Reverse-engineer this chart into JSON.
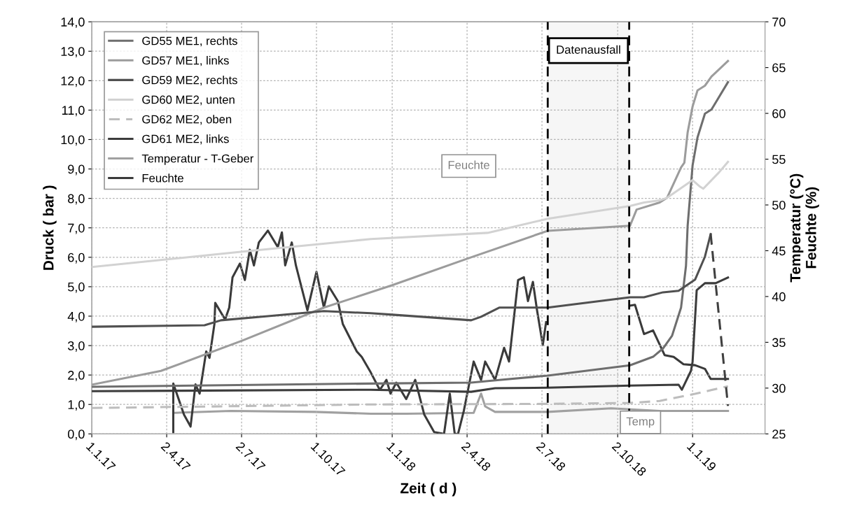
{
  "chart_data": {
    "type": "line",
    "xlabel": "Zeit ( d )",
    "ylabel": "Druck ( bar )",
    "y2label": "Temperatur (°C)\nFeuchte (%)",
    "xlim": [
      "2017-01-01",
      "2019-03-30"
    ],
    "xticks": [
      {
        "value": "2017-01-01",
        "label": "1.1.17"
      },
      {
        "value": "2017-04-02",
        "label": "2.4.17"
      },
      {
        "value": "2017-07-02",
        "label": "2.7.17"
      },
      {
        "value": "2017-10-01",
        "label": "1.10.17"
      },
      {
        "value": "2018-01-01",
        "label": "1.1.18"
      },
      {
        "value": "2018-04-02",
        "label": "2.4.18"
      },
      {
        "value": "2018-07-02",
        "label": "2.7.18"
      },
      {
        "value": "2018-10-02",
        "label": "2.10.18"
      },
      {
        "value": "2019-01-01",
        "label": "1.1.19"
      }
    ],
    "ylim": [
      0,
      14
    ],
    "yticks": [
      {
        "value": 0,
        "label": "0,0"
      },
      {
        "value": 1,
        "label": "1,0"
      },
      {
        "value": 2,
        "label": "2,0"
      },
      {
        "value": 3,
        "label": "3,0"
      },
      {
        "value": 4,
        "label": "4,0"
      },
      {
        "value": 5,
        "label": "5,0"
      },
      {
        "value": 6,
        "label": "6,0"
      },
      {
        "value": 7,
        "label": "7,0"
      },
      {
        "value": 8,
        "label": "8,0"
      },
      {
        "value": 9,
        "label": "9,0"
      },
      {
        "value": 10,
        "label": "10,0"
      },
      {
        "value": 11,
        "label": "11,0"
      },
      {
        "value": 12,
        "label": "12,0"
      },
      {
        "value": 13,
        "label": "13,0"
      },
      {
        "value": 14,
        "label": "14,0"
      }
    ],
    "y2lim": [
      25,
      70
    ],
    "y2ticks": [
      25,
      30,
      35,
      40,
      45,
      50,
      55,
      60,
      65,
      70
    ],
    "grid": true,
    "legend": "top left",
    "bands": [
      {
        "axis": "x",
        "from": "2018-07-09",
        "to": "2018-10-16",
        "label": "Datenausfall",
        "color": "#f6f6f6"
      }
    ],
    "ref_lines": [
      {
        "axis": "x",
        "value": "2018-07-09",
        "color": "#000000",
        "line_style": "dashed"
      },
      {
        "axis": "x",
        "value": "2018-10-16",
        "color": "#000000",
        "line_style": "dashed"
      }
    ],
    "annotations": [
      "Feuchte",
      "Temp"
    ],
    "series": [
      {
        "name": "GD55 ME1, rechts",
        "color": "#6e6e6e",
        "line_style": "solid",
        "x": [
          "2017-01-01",
          "2017-12-06",
          "2018-04-07",
          "2018-05-11",
          "2018-07-09",
          "2018-10-17",
          "2018-11-14",
          "2018-11-26",
          "2018-12-07",
          "2018-12-18",
          "2018-12-24",
          "2018-12-26",
          "2019-01-01",
          "2019-01-07",
          "2019-01-16",
          "2019-01-24",
          "2019-02-13"
        ],
        "values": [
          1.6,
          1.71,
          1.74,
          1.83,
          1.98,
          2.33,
          2.62,
          2.9,
          3.33,
          4.29,
          5.71,
          7.07,
          9.12,
          10.07,
          10.88,
          11.02,
          11.95
        ]
      },
      {
        "name": "GD57 ME1, links",
        "color": "#9c9c9c",
        "line_style": "solid",
        "x": [
          "2017-01-01",
          "2017-03-26",
          "2017-07-03",
          "2017-10-10",
          "2018-01-01",
          "2018-04-02",
          "2018-07-09",
          "2018-10-17",
          "2018-10-25",
          "2018-11-22",
          "2018-12-01",
          "2018-12-18",
          "2018-12-22",
          "2018-12-26",
          "2019-01-01",
          "2019-01-07",
          "2019-01-16",
          "2019-01-24",
          "2019-02-13"
        ],
        "values": [
          1.67,
          2.14,
          3.17,
          4.29,
          5.05,
          5.95,
          6.9,
          7.07,
          7.62,
          7.86,
          8.02,
          9.05,
          9.21,
          10.24,
          11.12,
          11.67,
          11.83,
          12.14,
          12.67
        ]
      },
      {
        "name": "GD59 ME2, rechts",
        "color": "#505050",
        "line_style": "solid",
        "x": [
          "2017-01-01",
          "2017-05-18",
          "2017-06-07",
          "2017-08-03",
          "2017-10-10",
          "2017-12-06",
          "2018-01-01",
          "2018-04-07",
          "2018-04-19",
          "2018-05-11",
          "2018-07-09",
          "2018-10-17",
          "2018-11-03",
          "2018-11-26",
          "2018-12-15",
          "2019-01-04",
          "2019-01-16",
          "2019-01-23"
        ],
        "values": [
          3.64,
          3.69,
          3.86,
          4.0,
          4.17,
          4.1,
          4.05,
          3.86,
          3.98,
          4.29,
          4.29,
          4.64,
          4.64,
          4.81,
          4.86,
          5.24,
          6.02,
          6.79
        ]
      },
      {
        "name": "GD60 ME2, unten",
        "color": "#d2d2d2",
        "line_style": "solid",
        "x": [
          "2017-01-01",
          "2017-07-03",
          "2017-12-06",
          "2018-04-27",
          "2018-07-09",
          "2018-10-17",
          "2018-11-03",
          "2018-11-22",
          "2018-12-01",
          "2019-01-01",
          "2019-01-10",
          "2019-01-14",
          "2019-02-02",
          "2019-02-13"
        ],
        "values": [
          5.67,
          6.19,
          6.62,
          6.83,
          7.31,
          7.74,
          7.86,
          7.93,
          8.02,
          8.62,
          8.4,
          8.33,
          8.88,
          9.24
        ]
      },
      {
        "name": "GD62 ME2, oben",
        "color": "#bdbdbd",
        "line_style": "dashed",
        "x": [
          "2017-01-01",
          "2017-12-06",
          "2018-07-07",
          "2018-10-17",
          "2018-11-22",
          "2019-01-04",
          "2019-02-13"
        ],
        "values": [
          0.88,
          1.0,
          1.02,
          1.05,
          1.12,
          1.36,
          1.62
        ]
      },
      {
        "name": "GD61 ME2, links",
        "color": "#3c3c3c",
        "line_style": "solid",
        "x": [
          "2017-01-01",
          "2017-12-06",
          "2018-04-07",
          "2018-05-06",
          "2018-07-09",
          "2018-10-17",
          "2018-12-15",
          "2018-12-19",
          "2018-12-30",
          "2019-01-01",
          "2019-01-06",
          "2019-01-16",
          "2019-01-29",
          "2019-02-13"
        ],
        "values": [
          1.45,
          1.5,
          1.43,
          1.55,
          1.57,
          1.64,
          1.67,
          1.5,
          2.14,
          2.45,
          4.88,
          5.12,
          5.12,
          5.31
        ]
      },
      {
        "name": "Temperatur - T-Geber",
        "color": "#a0a0a0",
        "line_style": "solid",
        "axis": "y2",
        "x": [
          "2017-04-12",
          "2017-06-19",
          "2017-09-29",
          "2017-12-06",
          "2018-01-18",
          "2018-04-10",
          "2018-04-19",
          "2018-04-24",
          "2018-05-06",
          "2018-07-09",
          "2018-09-24",
          "2018-11-22",
          "2019-02-13"
        ],
        "values": [
          27.3,
          27.5,
          27.4,
          27.2,
          27.2,
          27.3,
          29.4,
          28.0,
          27.4,
          27.4,
          27.8,
          27.5,
          27.5
        ]
      },
      {
        "name": "Feuchte",
        "color": "#3a3a3a",
        "line_style": "solid",
        "axis": "y2",
        "x": [
          "2017-04-10",
          "2017-04-10",
          "2017-04-23",
          "2017-05-01",
          "2017-05-07",
          "2017-05-12",
          "2017-05-20",
          "2017-05-24",
          "2017-05-30",
          "2017-05-31",
          "2017-06-12",
          "2017-06-17",
          "2017-06-21",
          "2017-06-30",
          "2017-07-06",
          "2017-07-12",
          "2017-07-17",
          "2017-07-23",
          "2017-08-03",
          "2017-08-15",
          "2017-08-20",
          "2017-08-24",
          "2017-09-01",
          "2017-09-06",
          "2017-09-20",
          "2017-10-01",
          "2017-10-10",
          "2017-10-16",
          "2017-10-27",
          "2017-11-02",
          "2017-11-19",
          "2017-11-25",
          "2017-12-06",
          "2017-12-17",
          "2017-12-25",
          "2017-12-30",
          "2018-01-06",
          "2018-01-18",
          "2018-01-29",
          "2018-02-09",
          "2018-02-21",
          "2018-03-05",
          "2018-03-12",
          "2018-03-18",
          "2018-03-22",
          "2018-03-29",
          "2018-04-10",
          "2018-04-19",
          "2018-04-24",
          "2018-05-06",
          "2018-05-17",
          "2018-05-23",
          "2018-06-03",
          "2018-06-10",
          "2018-06-15",
          "2018-06-21",
          "2018-06-26",
          "2018-07-03",
          "2018-07-07",
          "2018-08-20",
          "2018-10-17",
          "2018-10-23",
          "2018-11-03",
          "2018-11-14",
          "2018-11-28",
          "2018-12-09",
          "2018-12-21",
          "2019-01-04",
          "2019-01-16",
          "2019-01-23",
          "2019-02-13"
        ],
        "values": [
          25.2,
          30.5,
          27.1,
          25.8,
          30.4,
          29.4,
          34.0,
          33.3,
          37.0,
          39.3,
          37.5,
          38.8,
          42.1,
          43.6,
          41.8,
          45.1,
          43.4,
          45.9,
          47.2,
          45.4,
          47.0,
          43.4,
          45.9,
          43.4,
          38.5,
          42.7,
          38.8,
          41.1,
          39.5,
          37.0,
          34.0,
          33.4,
          31.7,
          29.8,
          30.9,
          29.4,
          30.6,
          28.8,
          30.9,
          27.1,
          25.2,
          25.0,
          29.4,
          25.0,
          25.0,
          27.5,
          32.9,
          30.9,
          32.9,
          30.9,
          34.4,
          32.9,
          41.8,
          42.1,
          39.5,
          41.6,
          38.5,
          34.7,
          37.2,
          null,
          39.0,
          39.1,
          35.9,
          36.3,
          33.6,
          33.4,
          32.6,
          32.5,
          32.1,
          31.0,
          31.0
        ]
      },
      {
        "color": "#404040",
        "line_style": "dashed",
        "x": [
          "2019-01-23",
          "2019-02-13"
        ],
        "values": [
          6.79,
          0.95
        ]
      }
    ]
  }
}
